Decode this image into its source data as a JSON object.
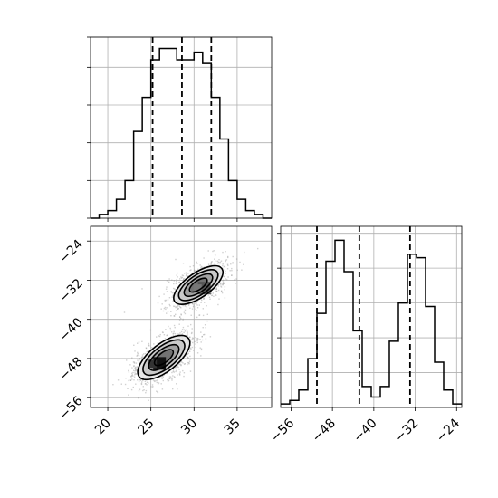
{
  "chart_data": [
    {
      "panel": "marginal-x",
      "type": "step-histogram",
      "x_range": [
        18,
        39
      ],
      "bin_edges": [
        18,
        19,
        20,
        21,
        22,
        23,
        24,
        25,
        26,
        27,
        28,
        29,
        30,
        31,
        32,
        33,
        34,
        35,
        36,
        37,
        38,
        39
      ],
      "values": [
        0,
        1,
        2,
        5,
        10,
        23,
        32,
        42,
        45,
        45,
        42,
        42,
        44,
        41,
        32,
        21,
        10,
        5,
        2,
        1,
        0
      ],
      "y_max": 48,
      "quantile_lines": [
        25.2,
        28.6,
        32.0
      ],
      "grid": true
    },
    {
      "panel": "joint",
      "type": "scatter-contour",
      "x_range": [
        18,
        39
      ],
      "y_range": [
        -58,
        -21
      ],
      "xticks": [
        "20",
        "25",
        "30",
        "35"
      ],
      "yticks": [
        "−24",
        "−32",
        "−40",
        "−48",
        "−56"
      ],
      "ytick_values": [
        -24,
        -32,
        -40,
        -48,
        -56
      ],
      "xtick_values": [
        20,
        25,
        30,
        35
      ],
      "clusters": [
        {
          "center": [
            30.5,
            -33.0
          ],
          "spread": [
            2.3,
            3.2
          ],
          "angle_deg": -35,
          "peak": [
            31.2,
            -33.6
          ]
        },
        {
          "center": [
            26.5,
            -47.8
          ],
          "spread": [
            2.5,
            3.6
          ],
          "angle_deg": -38,
          "peak": [
            26.0,
            -49.0
          ]
        }
      ],
      "grid": true
    },
    {
      "panel": "marginal-y",
      "type": "step-histogram",
      "x_range": [
        -58,
        -23
      ],
      "bin_edges": [
        -58,
        -56.25,
        -54.5,
        -52.75,
        -51,
        -49.25,
        -47.5,
        -45.75,
        -44,
        -42.25,
        -40.5,
        -38.75,
        -37,
        -35.25,
        -33.5,
        -31.75,
        -30,
        -28.25,
        -26.5,
        -24.75,
        -23
      ],
      "values": [
        1,
        2,
        5,
        14,
        27,
        42,
        48,
        39,
        22,
        6,
        3,
        6,
        19,
        30,
        44,
        43,
        29,
        13,
        5,
        1
      ],
      "y_max": 52,
      "quantile_lines": [
        -51.0,
        -42.8,
        -33.0
      ],
      "xticks": [
        "−56",
        "−48",
        "−40",
        "−32",
        "−24"
      ],
      "xtick_values": [
        -56,
        -48,
        -40,
        -32,
        -24
      ],
      "grid": true
    }
  ]
}
